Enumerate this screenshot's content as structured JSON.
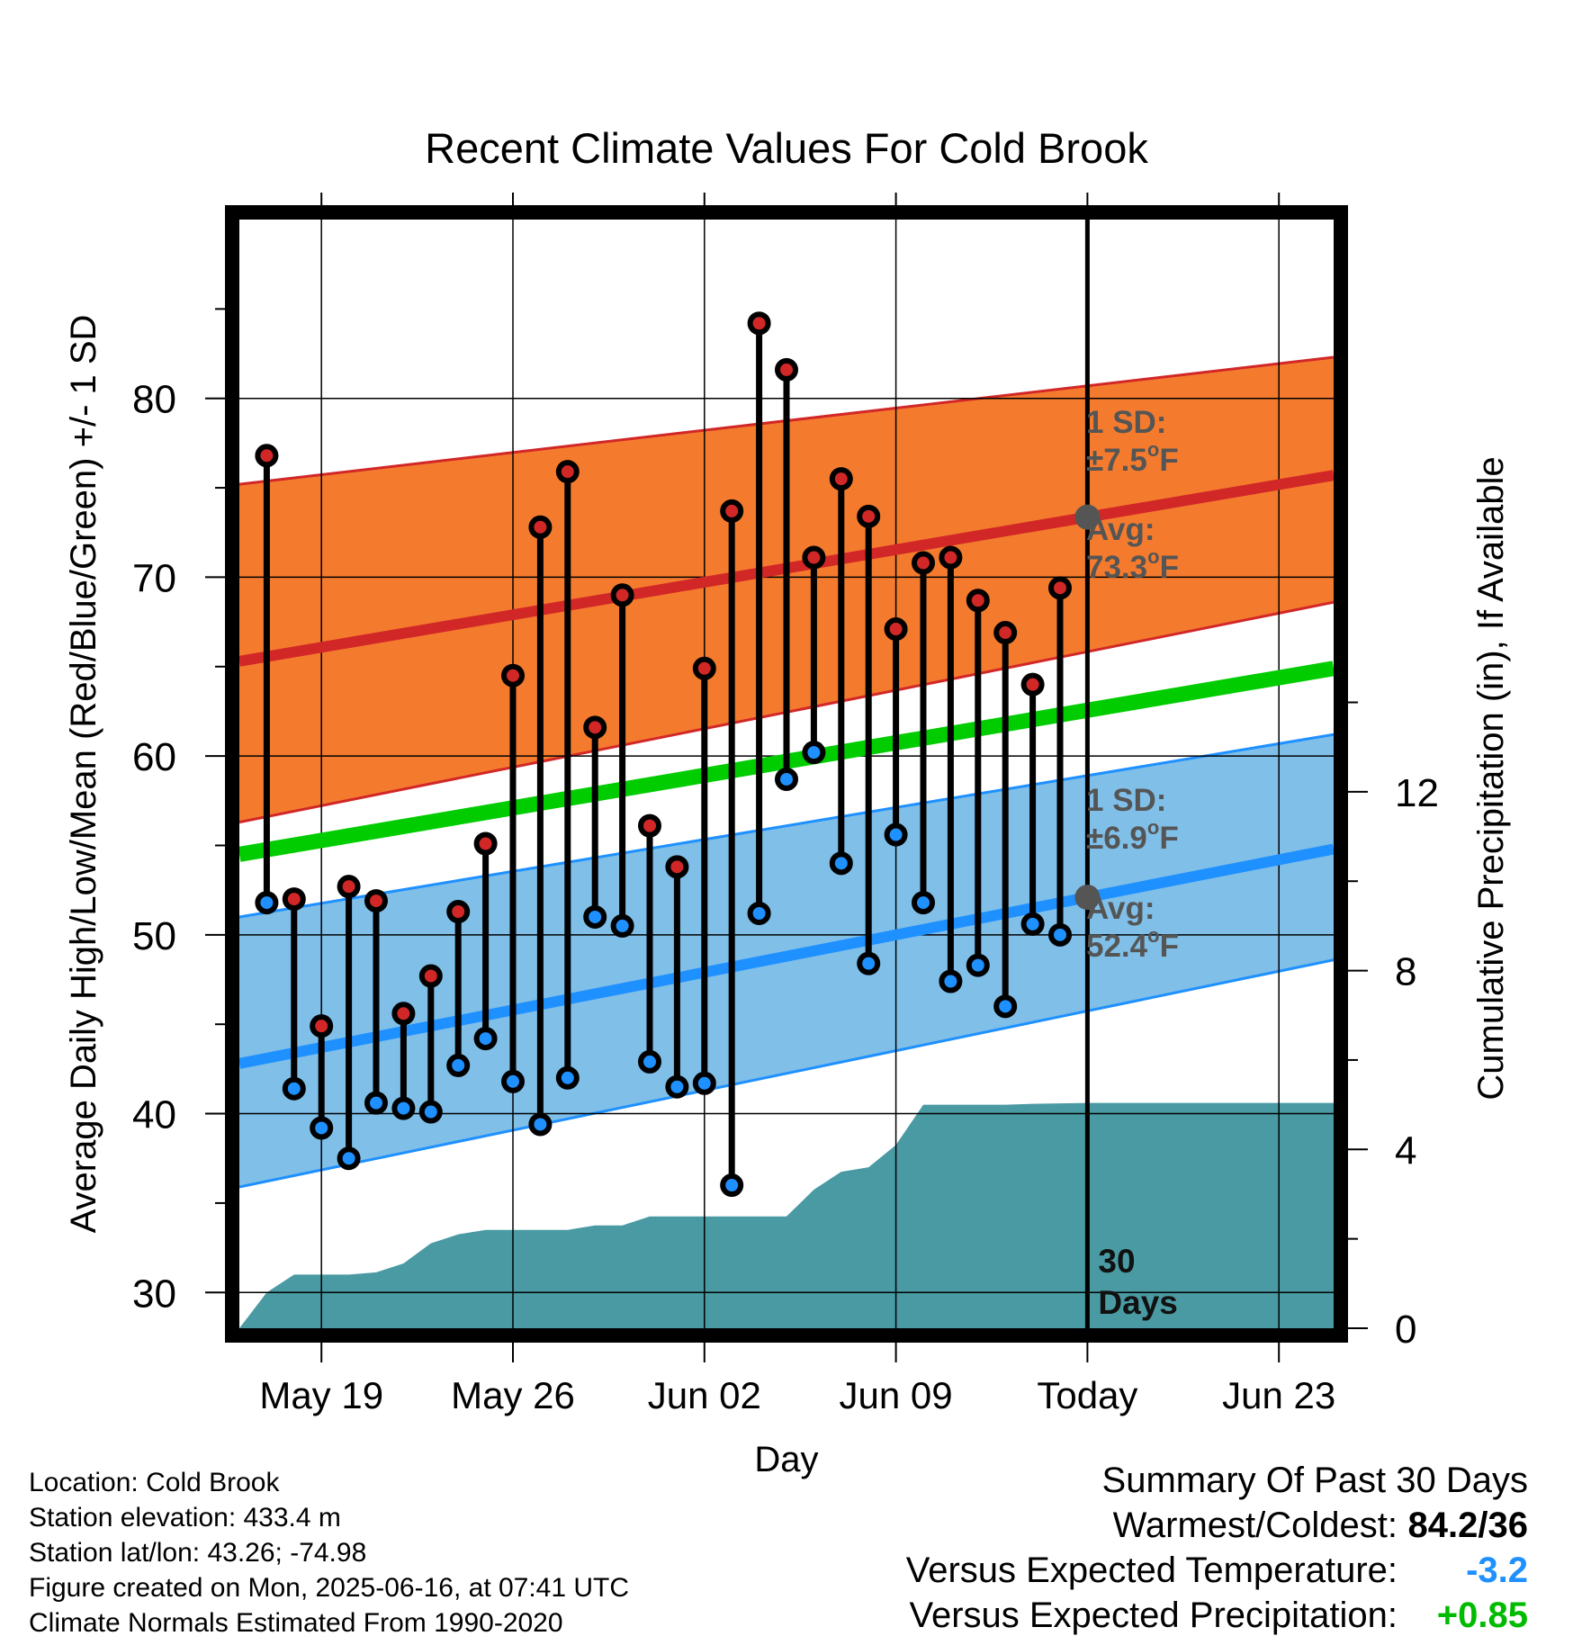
{
  "chart_data": {
    "type": "line",
    "title": "Recent Climate Values For Cold Brook",
    "xlabel": "Day",
    "ylabel": "Average Daily High/Low/Mean (Red/Blue/Green) +/- 1 SD",
    "y2label": "Cumulative Precipitation (in), If Available",
    "ylim": [
      28,
      90
    ],
    "y2lim": [
      0,
      24.8
    ],
    "yticks": [
      "30",
      "40",
      "50",
      "60",
      "70",
      "80"
    ],
    "y2ticks": [
      "0",
      "4",
      "8",
      "12"
    ],
    "xticks": [
      "May 19",
      "May 26",
      "Jun 02",
      "Jun 09",
      "Today",
      "Jun 23"
    ],
    "xlim": [
      "2025-05-16",
      "2025-06-25"
    ],
    "today": "2025-06-16",
    "today_label": "30\nDays",
    "grid": true,
    "colors": {
      "high": "#d22727",
      "low": "#1e90ff",
      "mean": "#00cc00",
      "high_band": "#f47b2e",
      "low_band": "#7fbfe8",
      "precip": "#4a9aa3",
      "annot": "#555555"
    },
    "normals": {
      "dates": [
        "2025-05-16",
        "2025-06-25"
      ],
      "high_avg": [
        65.3,
        75.7
      ],
      "high_sd_upper": [
        75.2,
        82.3
      ],
      "high_sd_lower": [
        56.3,
        68.6
      ],
      "low_avg": [
        42.8,
        54.8
      ],
      "low_sd_upper": [
        51.0,
        61.2
      ],
      "low_sd_lower": [
        35.9,
        48.6
      ],
      "mean_avg": [
        54.5,
        64.9
      ]
    },
    "annotations": {
      "high_sd": "1 SD:",
      "high_sd_val": "±7.5°F",
      "high_avg": "Avg:",
      "high_avg_val": "73.3°F",
      "low_sd": "1 SD:",
      "low_sd_val": "±6.9°F",
      "low_avg": "Avg:",
      "low_avg_val": "52.4°F"
    },
    "series": [
      {
        "name": "High",
        "x": [
          "2025-05-17",
          "2025-05-18",
          "2025-05-19",
          "2025-05-20",
          "2025-05-21",
          "2025-05-22",
          "2025-05-23",
          "2025-05-24",
          "2025-05-25",
          "2025-05-26",
          "2025-05-27",
          "2025-05-28",
          "2025-05-29",
          "2025-05-30",
          "2025-05-31",
          "2025-06-01",
          "2025-06-02",
          "2025-06-03",
          "2025-06-04",
          "2025-06-05",
          "2025-06-06",
          "2025-06-07",
          "2025-06-08",
          "2025-06-09",
          "2025-06-10",
          "2025-06-11",
          "2025-06-12",
          "2025-06-13",
          "2025-06-14",
          "2025-06-15"
        ],
        "values": [
          76.8,
          52.0,
          44.9,
          52.7,
          51.9,
          45.6,
          47.7,
          51.3,
          55.1,
          64.5,
          72.8,
          75.9,
          61.6,
          69.0,
          56.1,
          53.8,
          64.9,
          73.7,
          84.2,
          81.6,
          71.1,
          75.5,
          73.4,
          67.1,
          70.8,
          71.1,
          68.7,
          66.9,
          64.0,
          69.4
        ]
      },
      {
        "name": "Low",
        "x": [
          "2025-05-17",
          "2025-05-18",
          "2025-05-19",
          "2025-05-20",
          "2025-05-21",
          "2025-05-22",
          "2025-05-23",
          "2025-05-24",
          "2025-05-25",
          "2025-05-26",
          "2025-05-27",
          "2025-05-28",
          "2025-05-29",
          "2025-05-30",
          "2025-05-31",
          "2025-06-01",
          "2025-06-02",
          "2025-06-03",
          "2025-06-04",
          "2025-06-05",
          "2025-06-06",
          "2025-06-07",
          "2025-06-08",
          "2025-06-09",
          "2025-06-10",
          "2025-06-11",
          "2025-06-12",
          "2025-06-13",
          "2025-06-14",
          "2025-06-15"
        ],
        "values": [
          51.8,
          41.4,
          39.2,
          37.5,
          40.6,
          40.3,
          40.1,
          42.7,
          44.2,
          41.8,
          39.4,
          42.0,
          51.0,
          50.5,
          42.9,
          41.5,
          41.7,
          36.0,
          51.2,
          58.7,
          60.2,
          54.0,
          48.4,
          55.6,
          51.8,
          47.4,
          48.3,
          46.0,
          50.6,
          50.0
        ]
      },
      {
        "name": "Cumulative Precipitation",
        "x": [
          "2025-05-16",
          "2025-05-17",
          "2025-05-18",
          "2025-05-19",
          "2025-05-20",
          "2025-05-21",
          "2025-05-22",
          "2025-05-23",
          "2025-05-24",
          "2025-05-25",
          "2025-05-26",
          "2025-05-27",
          "2025-05-28",
          "2025-05-29",
          "2025-05-30",
          "2025-05-31",
          "2025-06-01",
          "2025-06-02",
          "2025-06-03",
          "2025-06-04",
          "2025-06-05",
          "2025-06-06",
          "2025-06-07",
          "2025-06-08",
          "2025-06-09",
          "2025-06-10",
          "2025-06-11",
          "2025-06-12",
          "2025-06-13",
          "2025-06-14",
          "2025-06-15",
          "2025-06-16",
          "2025-06-25"
        ],
        "values": [
          0.0,
          0.8,
          1.2,
          1.2,
          1.2,
          1.25,
          1.45,
          1.9,
          2.1,
          2.2,
          2.2,
          2.2,
          2.2,
          2.3,
          2.3,
          2.5,
          2.5,
          2.5,
          2.5,
          2.5,
          2.5,
          3.1,
          3.5,
          3.6,
          4.1,
          5.0,
          5.0,
          5.0,
          5.0,
          5.02,
          5.03,
          5.04,
          5.04
        ]
      }
    ]
  },
  "footer": {
    "location": "Location: Cold Brook",
    "elevation": "Station elevation: 433.4 m",
    "latlon": "Station lat/lon: 43.26; -74.98",
    "created": "Figure created on Mon, 2025-06-16, at 07:41 UTC",
    "normals": "Climate Normals Estimated From 1990-2020"
  },
  "summary": {
    "title": "Summary Of Past 30 Days",
    "warmest_label": "Warmest/Coldest:",
    "warmest_value": "84.2/36",
    "temp_label": "Versus Expected Temperature:",
    "temp_value": "-3.2",
    "temp_color": "#1e90ff",
    "precip_label": "Versus Expected Precipitation:",
    "precip_value": "+0.85",
    "precip_color": "#00bb00"
  }
}
